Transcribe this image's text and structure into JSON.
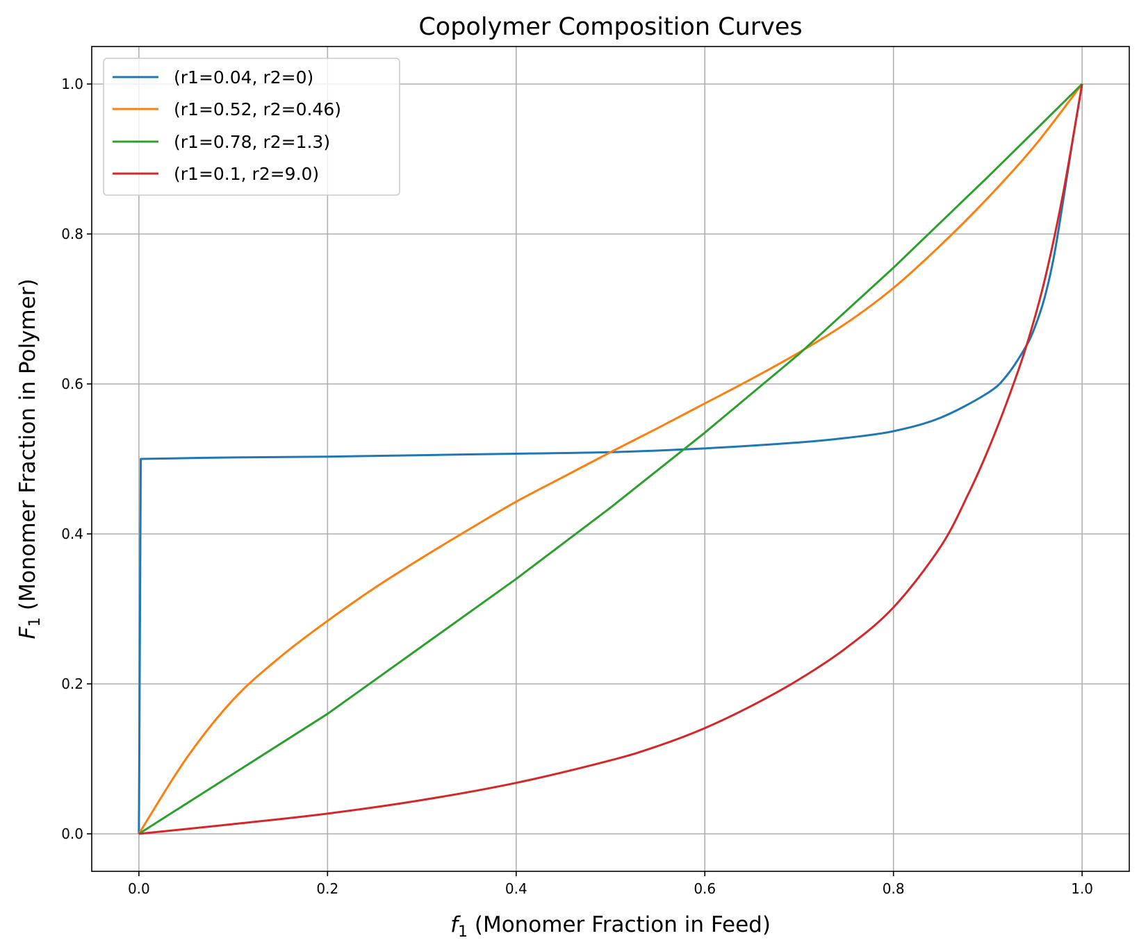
{
  "chart_data": {
    "type": "line",
    "title": "Copolymer Composition Curves",
    "xlabel": {
      "symbol": "f",
      "subscript": "1",
      "text": " (Monomer Fraction in Feed)"
    },
    "ylabel": {
      "symbol": "F",
      "subscript": "1",
      "text": " (Monomer Fraction in Polymer)"
    },
    "xlim": [
      -0.05,
      1.05
    ],
    "ylim": [
      -0.05,
      1.05
    ],
    "xticks": [
      0.0,
      0.2,
      0.4,
      0.6,
      0.8,
      1.0
    ],
    "yticks": [
      0.0,
      0.2,
      0.4,
      0.6,
      0.8,
      1.0
    ],
    "xtick_labels": [
      "0.0",
      "0.2",
      "0.4",
      "0.6",
      "0.8",
      "1.0"
    ],
    "ytick_labels": [
      "0.0",
      "0.2",
      "0.4",
      "0.6",
      "0.8",
      "1.0"
    ],
    "grid": true,
    "legend_position": "top-left",
    "series": [
      {
        "name": "(r1=0.04, r2=0)",
        "color": "#1f77b4",
        "x": [
          0.0,
          0.002,
          0.1,
          0.2,
          0.3,
          0.4,
          0.5,
          0.6,
          0.7,
          0.75,
          0.8,
          0.85,
          0.9,
          0.92,
          0.94,
          0.95,
          0.96,
          0.97,
          0.98,
          0.99,
          1.0
        ],
        "y": [
          0.0,
          0.5,
          0.502,
          0.503,
          0.505,
          0.507,
          0.509,
          0.514,
          0.522,
          0.528,
          0.537,
          0.555,
          0.588,
          0.611,
          0.649,
          0.676,
          0.714,
          0.769,
          0.845,
          0.925,
          1.0
        ]
      },
      {
        "name": "(r1=0.52, r2=0.46)",
        "color": "#ff7f0e",
        "x": [
          0.0,
          0.05,
          0.1,
          0.15,
          0.2,
          0.25,
          0.3,
          0.35,
          0.4,
          0.45,
          0.5,
          0.55,
          0.6,
          0.65,
          0.7,
          0.75,
          0.8,
          0.85,
          0.9,
          0.95,
          1.0
        ],
        "y": [
          0.0,
          0.1,
          0.179,
          0.236,
          0.284,
          0.328,
          0.368,
          0.406,
          0.443,
          0.476,
          0.509,
          0.541,
          0.574,
          0.607,
          0.642,
          0.681,
          0.728,
          0.785,
          0.848,
          0.918,
          1.0
        ]
      },
      {
        "name": "(r1=0.78, r2=1.3)",
        "color": "#2ca02c",
        "x": [
          0.0,
          0.1,
          0.2,
          0.3,
          0.4,
          0.5,
          0.6,
          0.7,
          0.8,
          0.9,
          1.0
        ],
        "y": [
          0.0,
          0.08,
          0.16,
          0.25,
          0.34,
          0.435,
          0.535,
          0.64,
          0.755,
          0.876,
          1.0
        ]
      },
      {
        "name": "(r1=0.1, r2=9.0)",
        "color": "#d62728",
        "x": [
          0.0,
          0.1,
          0.2,
          0.3,
          0.4,
          0.5,
          0.55,
          0.6,
          0.65,
          0.7,
          0.75,
          0.8,
          0.85,
          0.88,
          0.9,
          0.92,
          0.94,
          0.96,
          0.98,
          1.0
        ],
        "y": [
          0.0,
          0.013,
          0.027,
          0.045,
          0.068,
          0.098,
          0.117,
          0.141,
          0.171,
          0.206,
          0.248,
          0.302,
          0.383,
          0.455,
          0.511,
          0.575,
          0.647,
          0.737,
          0.855,
          1.0
        ]
      }
    ]
  }
}
